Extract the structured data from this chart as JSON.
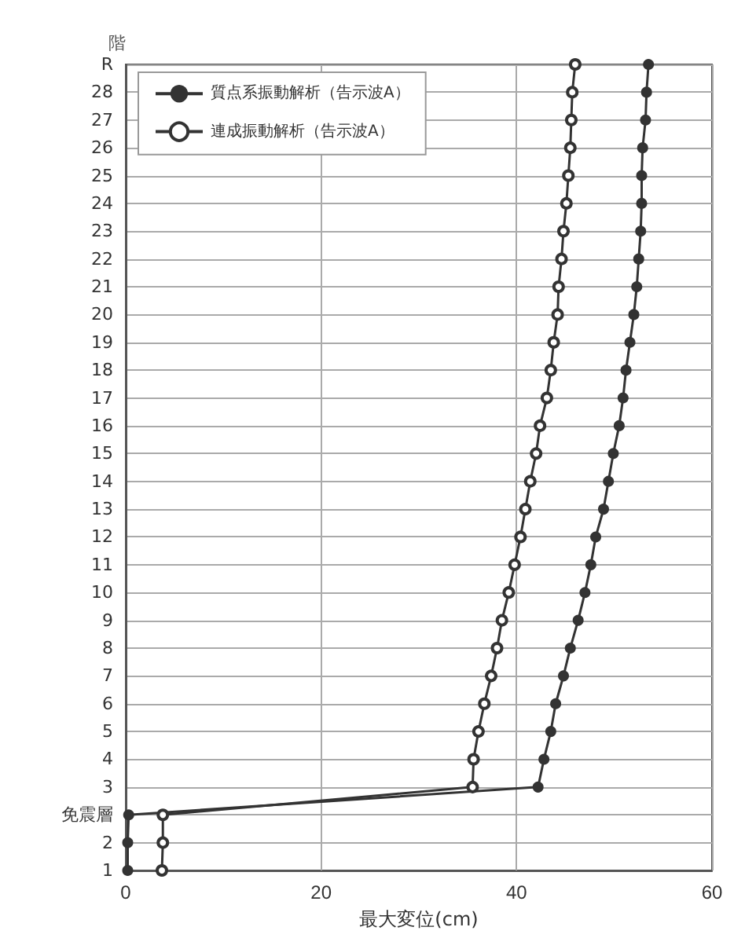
{
  "chart_data": {
    "type": "line",
    "orientation": "horizontal",
    "xlabel": "最大変位(cm)",
    "ylabel": "階",
    "categories": [
      "R",
      "28",
      "27",
      "26",
      "25",
      "24",
      "23",
      "22",
      "21",
      "20",
      "19",
      "18",
      "17",
      "16",
      "15",
      "14",
      "13",
      "12",
      "11",
      "10",
      "9",
      "8",
      "7",
      "6",
      "5",
      "4",
      "3",
      "免震層",
      "2",
      "1"
    ],
    "series": [
      {
        "name": "質点系振動解析（告示波A）",
        "color": "#333333",
        "values": [
          53.5,
          53.3,
          53.2,
          52.9,
          52.8,
          52.8,
          52.7,
          52.5,
          52.3,
          52.0,
          51.6,
          51.2,
          50.9,
          50.5,
          49.9,
          49.4,
          48.9,
          48.1,
          47.6,
          47.0,
          46.3,
          45.5,
          44.8,
          44.0,
          43.5,
          42.8,
          42.2,
          0.3,
          0.2,
          0.2
        ]
      },
      {
        "name": "連成振動解析（告示波A）",
        "color": "#333333",
        "values": [
          46.0,
          45.7,
          45.6,
          45.5,
          45.3,
          45.1,
          44.8,
          44.6,
          44.3,
          44.2,
          43.8,
          43.5,
          43.1,
          42.4,
          42.0,
          41.4,
          40.9,
          40.4,
          39.8,
          39.2,
          38.5,
          38.0,
          37.4,
          36.7,
          36.1,
          35.6,
          35.5,
          3.8,
          3.8,
          3.7
        ]
      }
    ],
    "xlim": [
      0,
      60
    ],
    "xticks": [
      0,
      20,
      40,
      60
    ],
    "grid": true,
    "legend": "top left",
    "marker": "circle",
    "line_style": "solid"
  }
}
